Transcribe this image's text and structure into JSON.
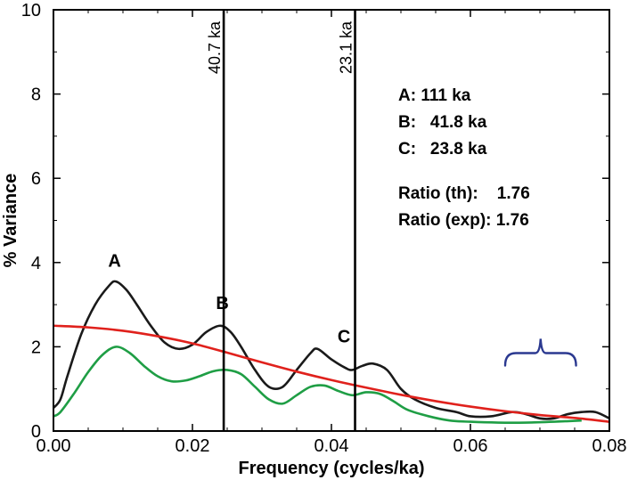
{
  "chart_data": {
    "type": "line",
    "xlabel": "Frequency (cycles/ka)",
    "ylabel": "% Variance",
    "xlim": [
      0,
      0.08
    ],
    "ylim": [
      0,
      10
    ],
    "x_ticks": [
      "0.00",
      "0.02",
      "0.04",
      "0.06",
      "0.08"
    ],
    "y_ticks": [
      "0",
      "2",
      "4",
      "6",
      "8",
      "10"
    ],
    "grid": false,
    "series": [
      {
        "color": "#1a1a1a",
        "points": [
          [
            0.0,
            0.55
          ],
          [
            0.001,
            0.75
          ],
          [
            0.002,
            1.3
          ],
          [
            0.004,
            2.3
          ],
          [
            0.006,
            3.0
          ],
          [
            0.008,
            3.45
          ],
          [
            0.009,
            3.55
          ],
          [
            0.0105,
            3.35
          ],
          [
            0.012,
            3.0
          ],
          [
            0.014,
            2.5
          ],
          [
            0.016,
            2.1
          ],
          [
            0.018,
            1.95
          ],
          [
            0.02,
            2.05
          ],
          [
            0.022,
            2.35
          ],
          [
            0.024,
            2.5
          ],
          [
            0.0255,
            2.35
          ],
          [
            0.027,
            2.0
          ],
          [
            0.029,
            1.45
          ],
          [
            0.031,
            1.05
          ],
          [
            0.033,
            1.05
          ],
          [
            0.035,
            1.45
          ],
          [
            0.037,
            1.85
          ],
          [
            0.038,
            1.95
          ],
          [
            0.04,
            1.7
          ],
          [
            0.042,
            1.5
          ],
          [
            0.043,
            1.45
          ],
          [
            0.0445,
            1.55
          ],
          [
            0.046,
            1.6
          ],
          [
            0.048,
            1.45
          ],
          [
            0.05,
            1.0
          ],
          [
            0.052,
            0.75
          ],
          [
            0.055,
            0.55
          ],
          [
            0.058,
            0.45
          ],
          [
            0.06,
            0.35
          ],
          [
            0.063,
            0.35
          ],
          [
            0.066,
            0.45
          ],
          [
            0.068,
            0.4
          ],
          [
            0.07,
            0.3
          ],
          [
            0.072,
            0.3
          ],
          [
            0.074,
            0.4
          ],
          [
            0.076,
            0.45
          ],
          [
            0.078,
            0.45
          ],
          [
            0.08,
            0.3
          ]
        ]
      },
      {
        "color": "#e0211c",
        "points": [
          [
            0.0,
            2.5
          ],
          [
            0.005,
            2.46
          ],
          [
            0.01,
            2.38
          ],
          [
            0.015,
            2.25
          ],
          [
            0.02,
            2.08
          ],
          [
            0.025,
            1.86
          ],
          [
            0.03,
            1.63
          ],
          [
            0.035,
            1.41
          ],
          [
            0.04,
            1.21
          ],
          [
            0.045,
            1.03
          ],
          [
            0.05,
            0.86
          ],
          [
            0.055,
            0.71
          ],
          [
            0.06,
            0.58
          ],
          [
            0.065,
            0.47
          ],
          [
            0.07,
            0.38
          ],
          [
            0.075,
            0.31
          ],
          [
            0.08,
            0.22
          ]
        ]
      },
      {
        "color": "#1f9e45",
        "points": [
          [
            0.0,
            0.35
          ],
          [
            0.001,
            0.45
          ],
          [
            0.003,
            0.9
          ],
          [
            0.005,
            1.4
          ],
          [
            0.007,
            1.8
          ],
          [
            0.009,
            2.0
          ],
          [
            0.011,
            1.85
          ],
          [
            0.013,
            1.55
          ],
          [
            0.015,
            1.3
          ],
          [
            0.017,
            1.18
          ],
          [
            0.019,
            1.2
          ],
          [
            0.021,
            1.3
          ],
          [
            0.023,
            1.42
          ],
          [
            0.025,
            1.45
          ],
          [
            0.027,
            1.35
          ],
          [
            0.029,
            1.05
          ],
          [
            0.031,
            0.75
          ],
          [
            0.033,
            0.65
          ],
          [
            0.035,
            0.85
          ],
          [
            0.037,
            1.05
          ],
          [
            0.039,
            1.08
          ],
          [
            0.041,
            0.95
          ],
          [
            0.043,
            0.85
          ],
          [
            0.045,
            0.92
          ],
          [
            0.047,
            0.88
          ],
          [
            0.049,
            0.7
          ],
          [
            0.051,
            0.5
          ],
          [
            0.054,
            0.35
          ],
          [
            0.057,
            0.25
          ],
          [
            0.06,
            0.22
          ],
          [
            0.064,
            0.2
          ],
          [
            0.068,
            0.2
          ],
          [
            0.072,
            0.22
          ],
          [
            0.076,
            0.25
          ]
        ]
      }
    ],
    "vertical_lines": [
      {
        "x": 0.0245,
        "label": "40.7 ka"
      },
      {
        "x": 0.0434,
        "label": "23.1 ka"
      }
    ],
    "peak_labels": [
      {
        "text": "A",
        "x": 0.0088,
        "y": 3.9
      },
      {
        "text": "B",
        "x": 0.0243,
        "y": 2.9
      },
      {
        "text": "C",
        "x": 0.0418,
        "y": 2.1
      }
    ],
    "info_lines": [
      "A: 111 ka",
      "B:   41.8 ka",
      "C:   23.8 ka",
      "Ratio (th):    1.76",
      "Ratio (exp): 1.76"
    ],
    "brace": {
      "x_from": 0.065,
      "x_to": 0.0752,
      "y": 1.85,
      "color": "#2b3990"
    }
  }
}
